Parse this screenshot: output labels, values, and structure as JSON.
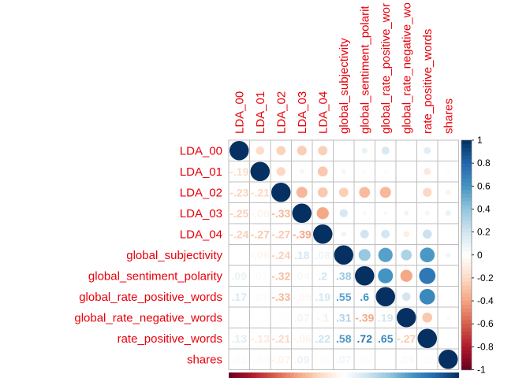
{
  "chart_data": {
    "type": "heatmap",
    "style": "corrplot-mixed: circles upper triangle and diagonal, coefficients lower triangle",
    "variables": [
      "LDA_00",
      "LDA_01",
      "LDA_02",
      "LDA_03",
      "LDA_04",
      "global_subjectivity",
      "global_sentiment_polarity",
      "global_rate_positive_words",
      "global_rate_negative_words",
      "rate_positive_words",
      "shares"
    ],
    "display_labels": [
      "LDA_00",
      "LDA_01",
      "LDA_02",
      "LDA_03",
      "LDA_04",
      "global_subjectivity",
      "global_sentiment_polarit",
      "global_rate_positive_wor",
      "global_rate_negative_wo",
      "rate_positive_words",
      "shares"
    ],
    "matrix": [
      [
        1.0,
        -0.19,
        -0.23,
        -0.25,
        -0.24,
        0.01,
        0.09,
        0.17,
        0.01,
        0.13,
        0.02
      ],
      [
        -0.19,
        1.0,
        -0.21,
        -0.06,
        -0.27,
        -0.06,
        0.03,
        0.03,
        -0.01,
        -0.13,
        -0.03
      ],
      [
        -0.23,
        -0.21,
        1.0,
        -0.33,
        -0.27,
        -0.24,
        -0.32,
        -0.33,
        -0.01,
        -0.21,
        -0.07
      ],
      [
        -0.25,
        -0.06,
        -0.33,
        1.0,
        -0.39,
        0.18,
        0.04,
        -0.05,
        0.07,
        -0.06,
        0.09
      ],
      [
        -0.24,
        -0.27,
        -0.27,
        -0.39,
        1.0,
        0.08,
        0.2,
        0.19,
        -0.1,
        0.22,
        -0.02
      ],
      [
        0.01,
        -0.06,
        -0.24,
        0.18,
        0.08,
        1.0,
        0.38,
        0.55,
        0.31,
        0.58,
        0.07
      ],
      [
        0.09,
        0.03,
        -0.32,
        0.04,
        0.2,
        0.38,
        1.0,
        0.6,
        -0.39,
        0.72,
        0.02
      ],
      [
        0.17,
        0.03,
        -0.33,
        -0.05,
        0.19,
        0.55,
        0.6,
        1.0,
        0.19,
        0.65,
        0.01
      ],
      [
        0.01,
        -0.01,
        -0.01,
        0.07,
        -0.1,
        0.31,
        -0.39,
        0.19,
        1.0,
        -0.27,
        0.04
      ],
      [
        0.13,
        -0.13,
        -0.21,
        -0.06,
        0.22,
        0.58,
        0.72,
        0.65,
        -0.27,
        1.0,
        0.02
      ],
      [
        0.02,
        -0.03,
        -0.07,
        0.09,
        -0.02,
        0.07,
        0.02,
        0.01,
        0.04,
        0.02,
        1.0
      ]
    ],
    "colorbar": {
      "range": [
        -1,
        1
      ],
      "ticks": [
        "-1",
        "-0.8",
        "-0.6",
        "-0.4",
        "-0.2",
        "0",
        "0.2",
        "0.4",
        "0.6",
        "0.8",
        "1"
      ],
      "tick_values": [
        -1,
        -0.8,
        -0.6,
        -0.4,
        -0.2,
        0,
        0.2,
        0.4,
        0.6,
        0.8,
        1
      ],
      "colors": [
        "#67001f",
        "#b2182b",
        "#d6604d",
        "#f4a582",
        "#fddbc7",
        "#ffffff",
        "#d1e5f0",
        "#92c5de",
        "#4393c3",
        "#2166ac",
        "#053061"
      ]
    },
    "label_color": "#e8000b",
    "grid_color": "#bebebe"
  }
}
